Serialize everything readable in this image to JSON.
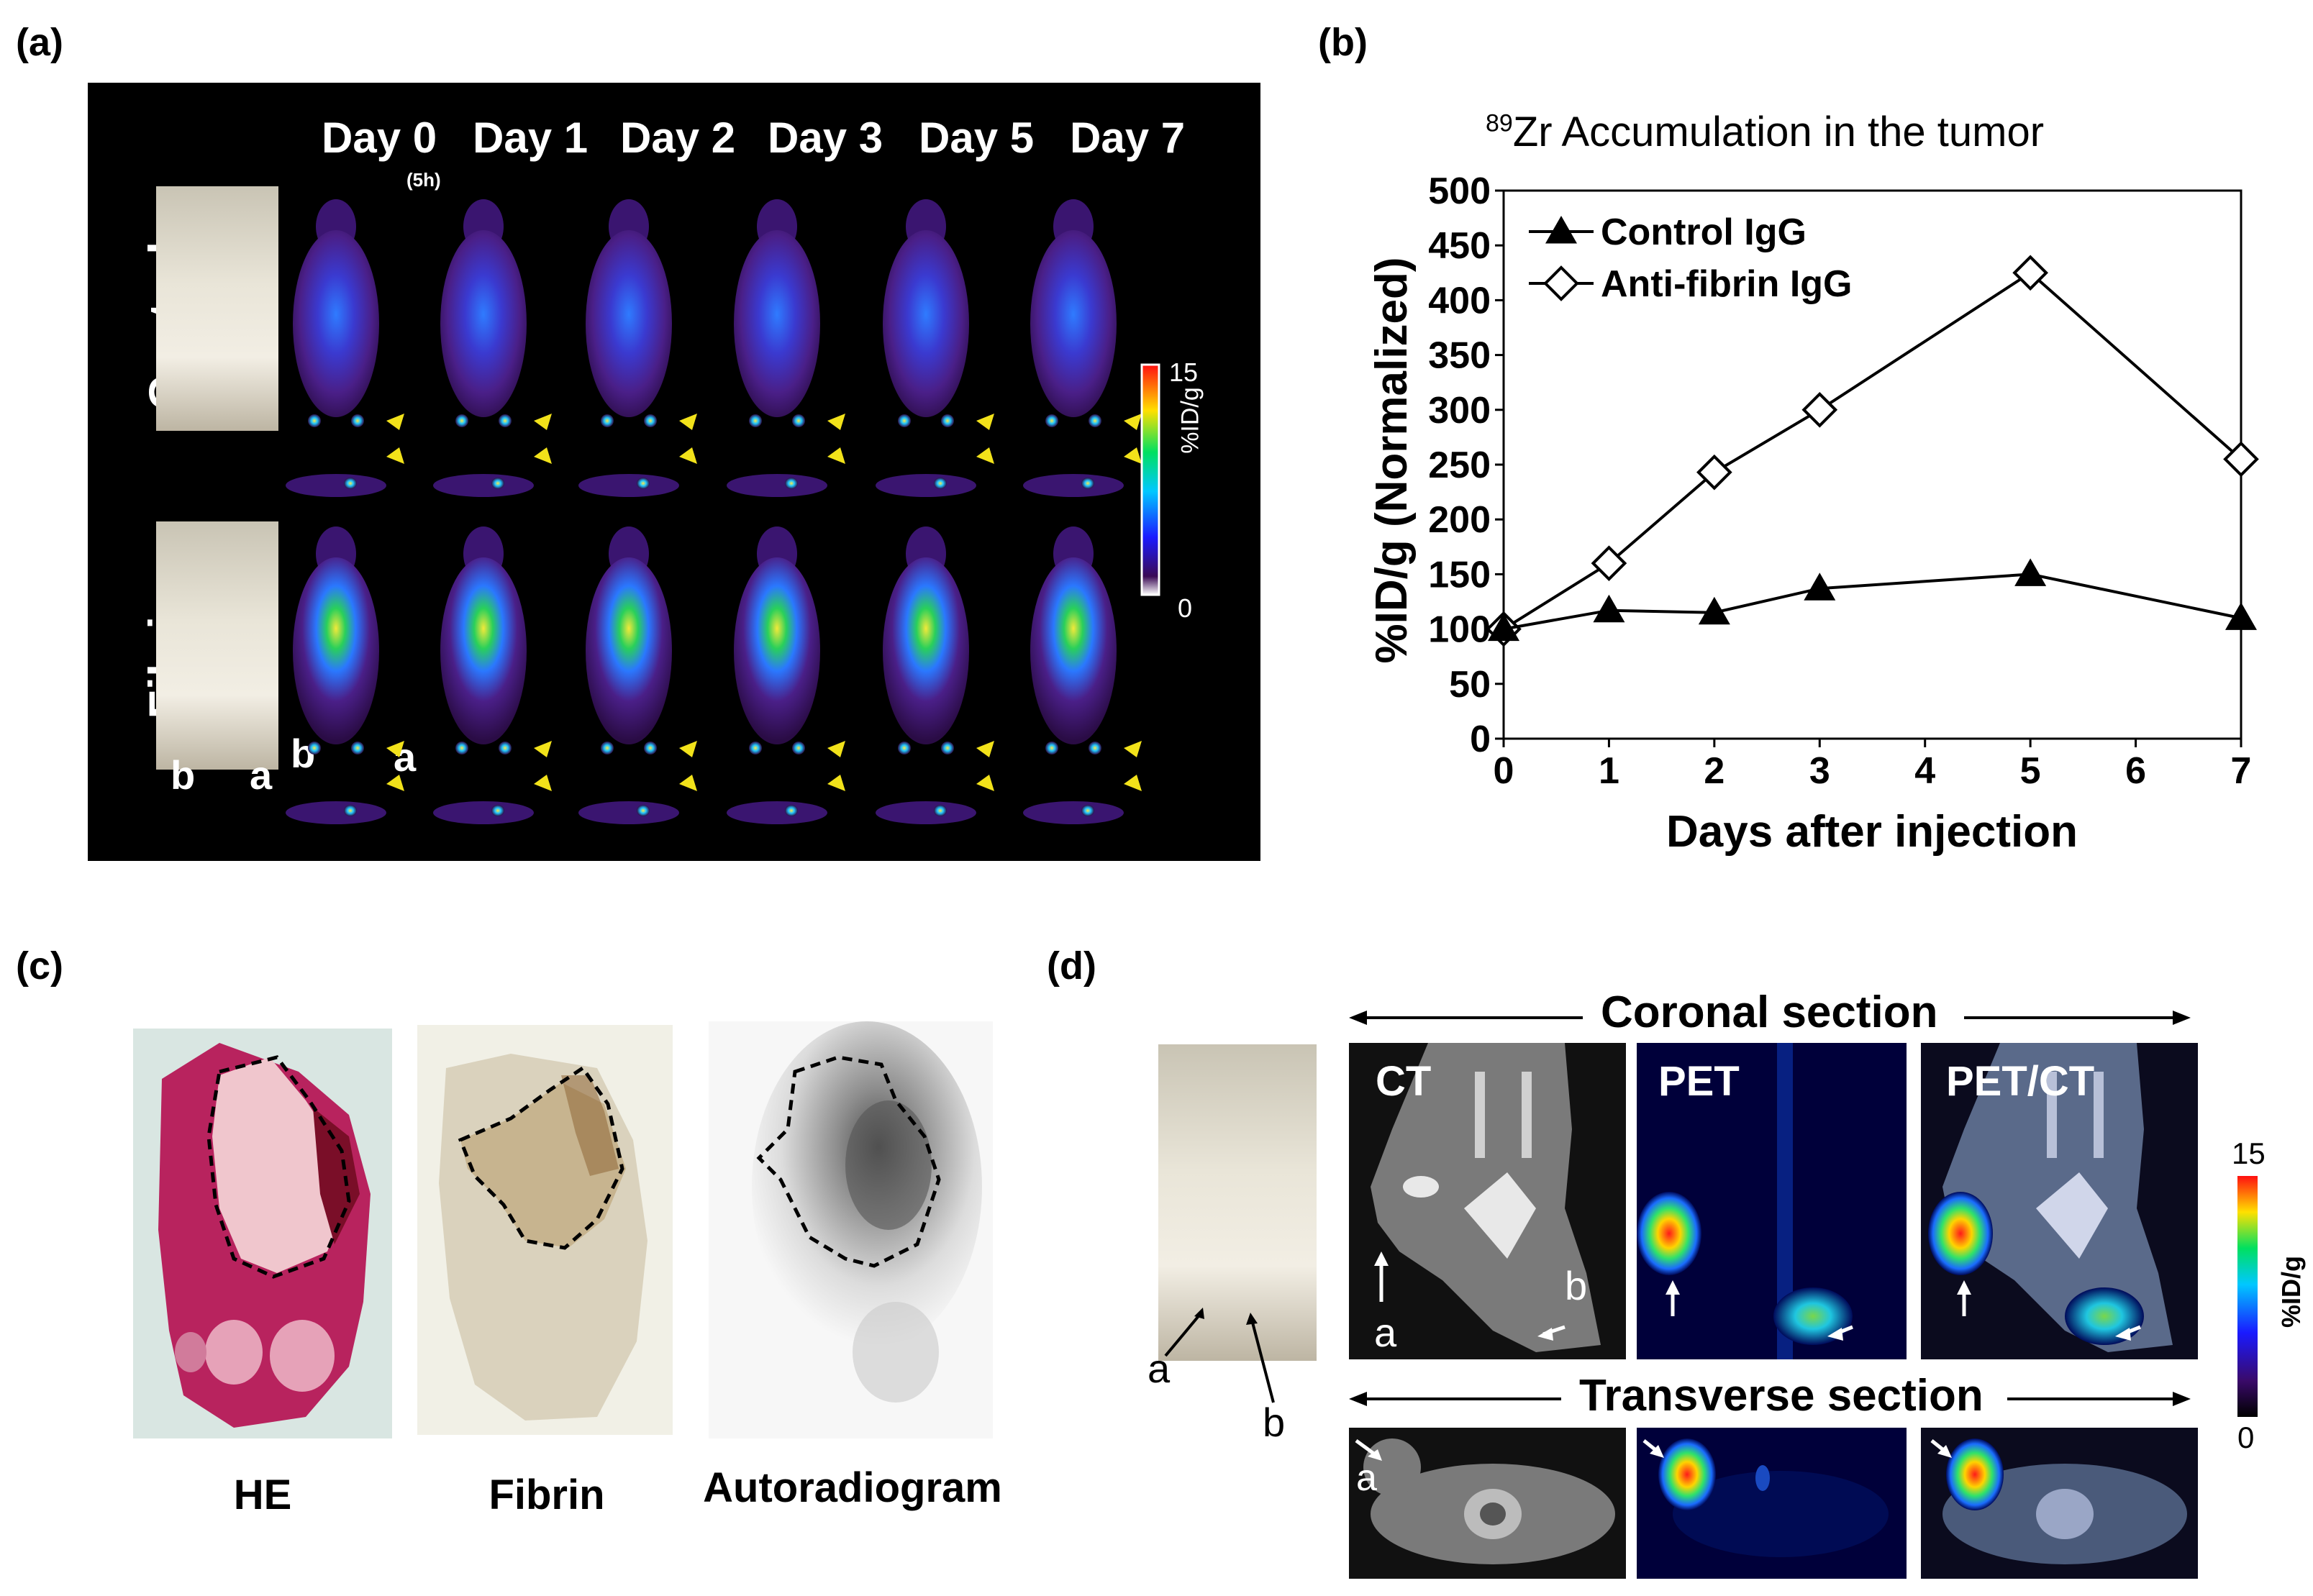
{
  "panels": {
    "a": {
      "label": "(a)",
      "days": [
        "Day 0",
        "Day 1",
        "Day 2",
        "Day 3",
        "Day 5",
        "Day 7"
      ],
      "day0_note": "(5h)",
      "rows": [
        "Control",
        "Fibrin"
      ],
      "photo_marks": {
        "b": "b",
        "a": "a"
      },
      "colorbar": {
        "max": "15",
        "min": "0",
        "unit": "%ID/g"
      }
    },
    "b": {
      "label": "(b)",
      "title_sup": "89",
      "title": "Zr Accumulation in the tumor"
    },
    "c": {
      "label": "(c)",
      "captions": [
        "HE",
        "Fibrin",
        "Autoradiogram"
      ]
    },
    "d": {
      "label": "(d)",
      "coronal": "Coronal section",
      "transverse": "Transverse section",
      "views": [
        "CT",
        "PET",
        "PET/CT"
      ],
      "marks": {
        "a": "a",
        "b": "b"
      },
      "colorbar": {
        "max": "15",
        "min": "0",
        "unit": "%ID/g"
      }
    }
  },
  "chart_data": {
    "type": "line",
    "title": "89Zr Accumulation in the tumor",
    "xlabel": "Days after injection",
    "ylabel": "%ID/g (Normalized)",
    "x": [
      0,
      1,
      2,
      3,
      5,
      7
    ],
    "xticks": [
      0,
      1,
      2,
      3,
      4,
      5,
      6,
      7
    ],
    "yticks": [
      0,
      50,
      100,
      150,
      200,
      250,
      300,
      350,
      400,
      450,
      500
    ],
    "xlim": [
      0,
      7
    ],
    "ylim": [
      0,
      500
    ],
    "legend_position": "top-left",
    "series": [
      {
        "name": "Control IgG",
        "marker": "filled-triangle",
        "values": [
          100,
          117,
          115,
          137,
          150,
          110
        ]
      },
      {
        "name": "Anti-fibrin  IgG",
        "marker": "open-diamond",
        "values": [
          100,
          160,
          243,
          300,
          425,
          255
        ]
      }
    ]
  }
}
